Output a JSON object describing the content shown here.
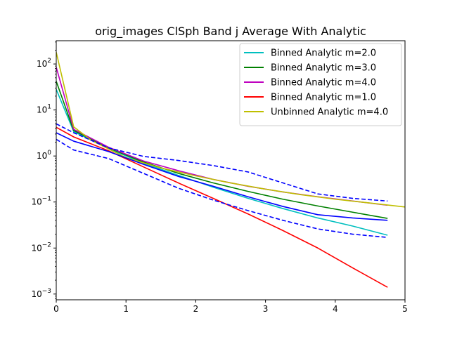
{
  "chart_data": {
    "type": "line",
    "title": "orig_images ClSph Band j Average With Analytic",
    "xlabel": "",
    "ylabel": "",
    "xlim": [
      0,
      5
    ],
    "ylim": [
      0.00075,
      320
    ],
    "yscale": "log",
    "grid": false,
    "legend_position": "top-right",
    "x_ticks": [
      {
        "value": 0,
        "label": "0"
      },
      {
        "value": 1,
        "label": "1"
      },
      {
        "value": 2,
        "label": "2"
      },
      {
        "value": 3,
        "label": "3"
      },
      {
        "value": 4,
        "label": "4"
      },
      {
        "value": 5,
        "label": "5"
      }
    ],
    "y_ticks": [
      {
        "value": 0.001,
        "base": "10",
        "exp": "−3"
      },
      {
        "value": 0.01,
        "base": "10",
        "exp": "−2"
      },
      {
        "value": 0.1,
        "base": "10",
        "exp": "−1"
      },
      {
        "value": 1,
        "base": "10",
        "exp": "0"
      },
      {
        "value": 10,
        "base": "10",
        "exp": "1"
      },
      {
        "value": 100,
        "base": "10",
        "exp": "2"
      }
    ],
    "series": [
      {
        "name": "Binned Analytic m=2.0",
        "color": "#00bfbf",
        "style": "solid",
        "x": [
          0,
          0.25,
          0.75,
          1.25,
          1.75,
          2.25,
          2.75,
          3.25,
          3.75,
          4.25,
          4.75
        ],
        "y": [
          28,
          3.4,
          1.45,
          0.7,
          0.38,
          0.21,
          0.12,
          0.072,
          0.045,
          0.03,
          0.019
        ]
      },
      {
        "name": "Binned Analytic m=3.0",
        "color": "#008000",
        "style": "solid",
        "x": [
          0,
          0.25,
          0.75,
          1.25,
          1.75,
          2.25,
          2.75,
          3.25,
          3.75,
          4.25,
          4.75
        ],
        "y": [
          42,
          3.6,
          1.5,
          0.74,
          0.42,
          0.26,
          0.17,
          0.115,
          0.082,
          0.06,
          0.044
        ]
      },
      {
        "name": "Binned Analytic m=4.0",
        "color": "#bf00bf",
        "style": "solid",
        "x": [
          0,
          0.25,
          0.75,
          1.25,
          1.75,
          2.25,
          2.75,
          3.25,
          3.75,
          4.25,
          4.75
        ],
        "y": [
          85,
          3.8,
          1.55,
          0.78,
          0.48,
          0.31,
          0.22,
          0.165,
          0.13,
          0.105,
          0.085
        ]
      },
      {
        "name": "Binned Analytic m=1.0",
        "color": "#ff0000",
        "style": "solid",
        "x": [
          0,
          0.25,
          0.75,
          1.25,
          1.75,
          2.25,
          2.75,
          3.25,
          3.75,
          4.25,
          4.75
        ],
        "y": [
          4.2,
          2.6,
          1.3,
          0.58,
          0.26,
          0.12,
          0.055,
          0.024,
          0.01,
          0.0037,
          0.0014
        ]
      },
      {
        "name": "Unbinned Analytic m=4.0",
        "color": "#bfbf00",
        "style": "solid",
        "x": [
          0,
          0.25,
          0.5,
          1.0,
          1.5,
          2.0,
          2.5,
          3.0,
          3.5,
          4.0,
          4.5,
          5.0
        ],
        "y": [
          180,
          4.3,
          2.2,
          0.92,
          0.55,
          0.37,
          0.26,
          0.19,
          0.145,
          0.115,
          0.095,
          0.078
        ]
      },
      {
        "name": "",
        "color": "#0000ff",
        "style": "solid",
        "x": [
          0,
          0.25,
          0.75,
          1.25,
          1.75,
          2.25,
          2.75,
          3.25,
          3.75,
          4.25,
          4.75
        ],
        "y": [
          3.2,
          2.1,
          1.25,
          0.66,
          0.36,
          0.22,
          0.13,
          0.08,
          0.053,
          0.045,
          0.04
        ]
      },
      {
        "name": "",
        "color": "#0000ff",
        "style": "dashed",
        "x": [
          0,
          0.25,
          0.75,
          1.25,
          1.75,
          2.25,
          2.75,
          3.25,
          3.75,
          4.25,
          4.75
        ],
        "y": [
          5.0,
          3.2,
          1.5,
          0.98,
          0.8,
          0.62,
          0.45,
          0.26,
          0.15,
          0.12,
          0.105
        ]
      },
      {
        "name": "",
        "color": "#0000ff",
        "style": "dashed",
        "x": [
          0,
          0.25,
          0.75,
          1.25,
          1.75,
          2.25,
          2.75,
          3.25,
          3.75,
          4.25,
          4.75
        ],
        "y": [
          2.3,
          1.35,
          0.88,
          0.42,
          0.2,
          0.11,
          0.065,
          0.04,
          0.026,
          0.02,
          0.017
        ]
      }
    ]
  }
}
